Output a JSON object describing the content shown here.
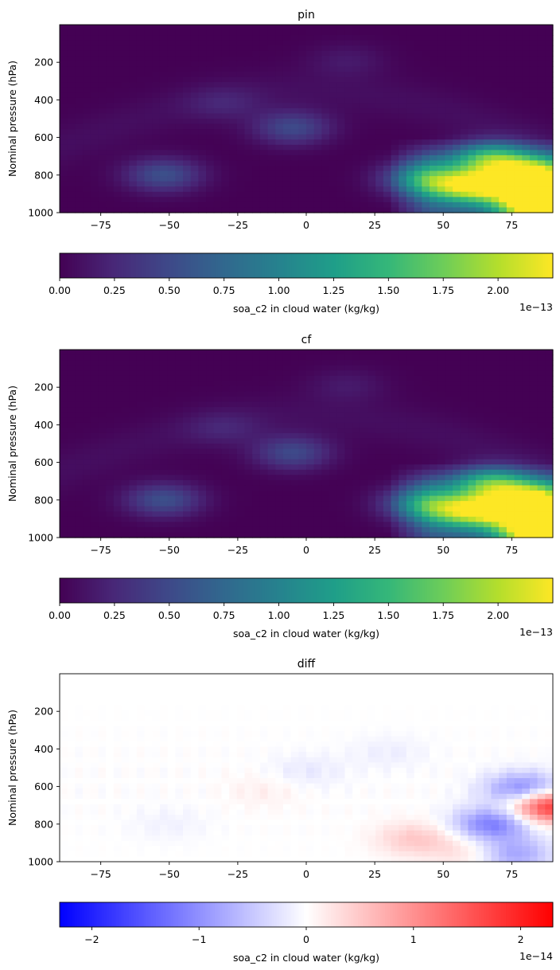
{
  "chart_data": [
    {
      "type": "heatmap",
      "title": "pin",
      "ylabel": "Nominal pressure (hPa)",
      "xlim": [
        -90,
        90
      ],
      "ylim": [
        1000,
        0
      ],
      "xticks": [
        -75,
        -50,
        -25,
        0,
        25,
        50,
        75
      ],
      "yticks": [
        200,
        400,
        600,
        800,
        1000
      ],
      "colormap": "viridis",
      "colorbar": {
        "label": "soa_c2 in cloud water (kg/kg)",
        "range": [
          0,
          2.25
        ],
        "ticks": [
          "0.00",
          "0.25",
          "0.50",
          "0.75",
          "1.00",
          "1.25",
          "1.50",
          "1.75",
          "2.00"
        ],
        "offset": "1e−13"
      },
      "blobs": [
        {
          "lat": -52,
          "p": 800,
          "val": 0.55
        },
        {
          "lat": -5,
          "p": 550,
          "val": 0.5
        },
        {
          "lat": 15,
          "p": 190,
          "val": 0.15
        },
        {
          "lat": -30,
          "p": 420,
          "val": 0.18
        },
        {
          "lat": 58,
          "p": 860,
          "val": 1.35
        },
        {
          "lat": 75,
          "p": 850,
          "val": 1.45
        },
        {
          "lat": 85,
          "p": 800,
          "val": 1.45
        },
        {
          "lat": 85,
          "p": 970,
          "val": 2.2
        },
        {
          "lat": 68,
          "p": 710,
          "val": 1.15
        },
        {
          "lat": 42,
          "p": 820,
          "val": 0.9
        }
      ]
    },
    {
      "type": "heatmap",
      "title": "cf",
      "ylabel": "Nominal pressure (hPa)",
      "xlim": [
        -90,
        90
      ],
      "ylim": [
        1000,
        0
      ],
      "xticks": [
        -75,
        -50,
        -25,
        0,
        25,
        50,
        75
      ],
      "yticks": [
        200,
        400,
        600,
        800,
        1000
      ],
      "colormap": "viridis",
      "colorbar": {
        "label": "soa_c2 in cloud water (kg/kg)",
        "range": [
          0,
          2.25
        ],
        "ticks": [
          "0.00",
          "0.25",
          "0.50",
          "0.75",
          "1.00",
          "1.25",
          "1.50",
          "1.75",
          "2.00"
        ],
        "offset": "1e−13"
      },
      "blobs": [
        {
          "lat": -52,
          "p": 800,
          "val": 0.55
        },
        {
          "lat": -5,
          "p": 550,
          "val": 0.5
        },
        {
          "lat": 15,
          "p": 190,
          "val": 0.15
        },
        {
          "lat": -30,
          "p": 420,
          "val": 0.18
        },
        {
          "lat": 58,
          "p": 860,
          "val": 1.3
        },
        {
          "lat": 75,
          "p": 850,
          "val": 1.4
        },
        {
          "lat": 85,
          "p": 800,
          "val": 1.4
        },
        {
          "lat": 85,
          "p": 970,
          "val": 2.15
        },
        {
          "lat": 68,
          "p": 710,
          "val": 1.1
        },
        {
          "lat": 42,
          "p": 820,
          "val": 0.85
        }
      ]
    },
    {
      "type": "heatmap",
      "title": "diff",
      "ylabel": "Nominal pressure (hPa)",
      "xlim": [
        -90,
        90
      ],
      "ylim": [
        1000,
        0
      ],
      "xticks": [
        -75,
        -50,
        -25,
        0,
        25,
        50,
        75
      ],
      "yticks": [
        200,
        400,
        600,
        800,
        1000
      ],
      "colormap": "bwr",
      "colorbar": {
        "label": "soa_c2 in cloud water (kg/kg)",
        "range": [
          -2.3,
          2.3
        ],
        "ticks": [
          "−2",
          "−1",
          "0",
          "1",
          "2"
        ],
        "tick_values": [
          -2,
          -1,
          0,
          1,
          2
        ],
        "offset": "1e−14"
      },
      "blobs": [
        {
          "lat": 40,
          "p": 880,
          "val": 0.5
        },
        {
          "lat": 68,
          "p": 800,
          "val": -1.2
        },
        {
          "lat": 80,
          "p": 620,
          "val": -1.3
        },
        {
          "lat": 88,
          "p": 700,
          "val": 2.0
        },
        {
          "lat": 75,
          "p": 960,
          "val": -0.9
        },
        {
          "lat": 62,
          "p": 950,
          "val": 0.4
        },
        {
          "lat": -15,
          "p": 620,
          "val": 0.15
        },
        {
          "lat": 0,
          "p": 520,
          "val": -0.2
        },
        {
          "lat": -50,
          "p": 800,
          "val": -0.12
        },
        {
          "lat": 30,
          "p": 420,
          "val": -0.15
        }
      ]
    }
  ]
}
